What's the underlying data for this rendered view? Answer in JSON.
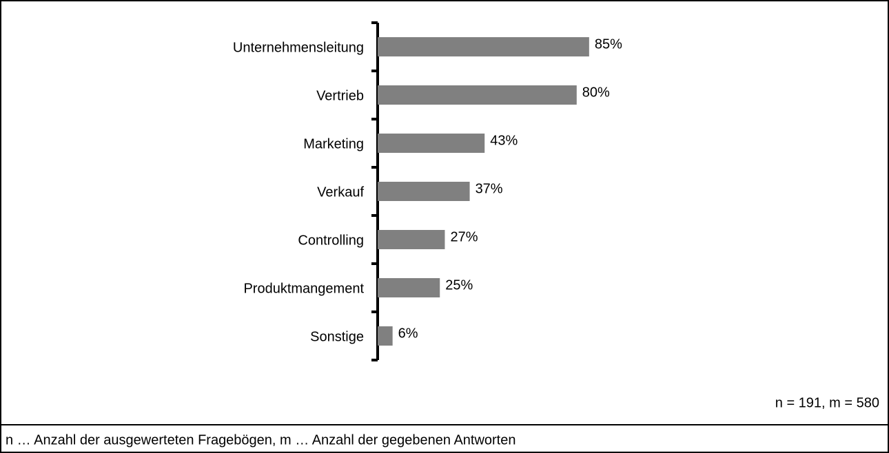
{
  "chart_data": {
    "type": "bar",
    "orientation": "horizontal",
    "categories": [
      "Unternehmensleitung",
      "Vertrieb",
      "Marketing",
      "Verkauf",
      "Controlling",
      "Produktmangement",
      "Sonstige"
    ],
    "values": [
      85,
      80,
      43,
      37,
      27,
      25,
      6
    ],
    "value_labels": [
      "85%",
      "80%",
      "43%",
      "37%",
      "27%",
      "25%",
      "6%"
    ],
    "color": "#808080",
    "xlim": [
      0,
      100
    ],
    "annotations": [
      "n = 191, m = 580"
    ],
    "footnote": "n … Anzahl der ausgewerteten Fragebögen, m … Anzahl der gegebenen Antworten"
  }
}
